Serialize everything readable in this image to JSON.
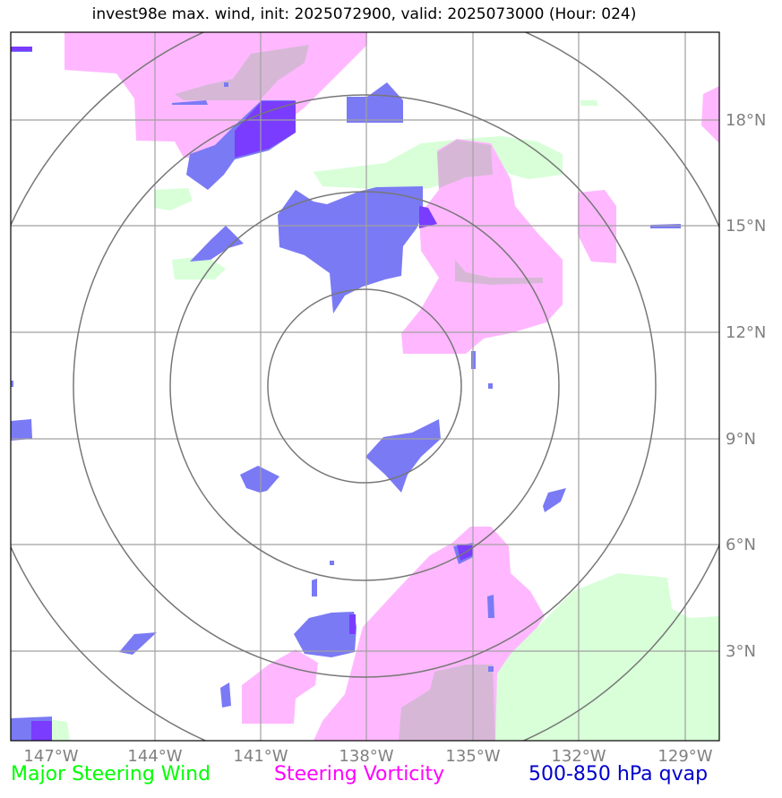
{
  "title": "invest98e max. wind, init: 2025072900, valid: 2025073000 (Hour: 024)",
  "lon_ticks": [
    "147°W",
    "144°W",
    "141°W",
    "138°W",
    "135°W",
    "132°W",
    "129°W"
  ],
  "lat_ticks": [
    "18°N",
    "15°N",
    "12°N",
    "9°N",
    "6°N",
    "3°N"
  ],
  "legend": {
    "wind": {
      "label": "Major Steering Wind",
      "color": "#00ff00"
    },
    "vorticity": {
      "label": "Steering Vorticity",
      "color": "#ff00ff"
    },
    "qvap": {
      "label": "500-850 hPa qvap",
      "color": "#0000cc"
    }
  },
  "colors": {
    "wind_fill": "#d8ffd8",
    "vorticity_fill": "#ffb8ff",
    "qvap_fill": "#7a7af5",
    "overlap_fill": "#d6b8d6",
    "strong_qvap_fill": "#7a3cff",
    "grid": "#a0a0a0",
    "range_rings": "#777777"
  }
}
